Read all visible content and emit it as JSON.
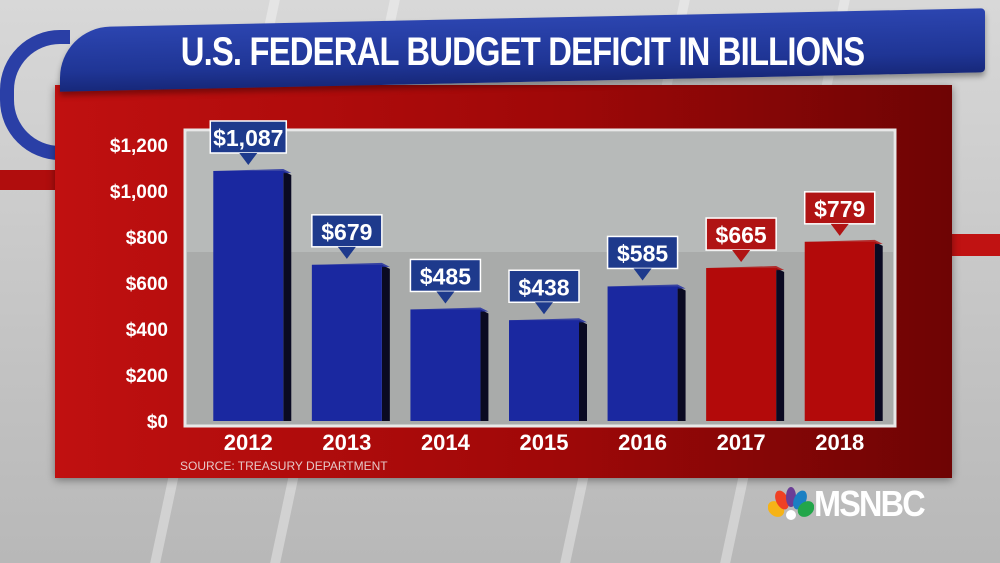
{
  "chart_data": {
    "type": "bar",
    "title": "U.S. FEDERAL BUDGET DEFICIT IN BILLIONS",
    "xlabel": "",
    "ylabel": "",
    "categories": [
      "2012",
      "2013",
      "2014",
      "2015",
      "2016",
      "2017",
      "2018"
    ],
    "values": [
      1087,
      679,
      485,
      438,
      585,
      665,
      779
    ],
    "data_labels": [
      "$1,087",
      "$679",
      "$485",
      "$438",
      "$585",
      "$665",
      "$779"
    ],
    "bar_colors": [
      "#1a28a0",
      "#1a28a0",
      "#1a28a0",
      "#1a28a0",
      "#1a28a0",
      "#b30a0a",
      "#b30a0a"
    ],
    "label_colors": [
      "#1e3a8c",
      "#1e3a8c",
      "#1e3a8c",
      "#1e3a8c",
      "#1e3a8c",
      "#b01414",
      "#b01414"
    ],
    "ylim": [
      0,
      1200
    ],
    "yticks": [
      0,
      200,
      400,
      600,
      800,
      1000,
      1200
    ],
    "ytick_labels": [
      "$0",
      "$200",
      "$400",
      "$600",
      "$800",
      "$1,000",
      "$1,200"
    ],
    "grid": false,
    "source": "SOURCE: TREASURY DEPARTMENT"
  },
  "branding": {
    "network": "MSNBC"
  }
}
